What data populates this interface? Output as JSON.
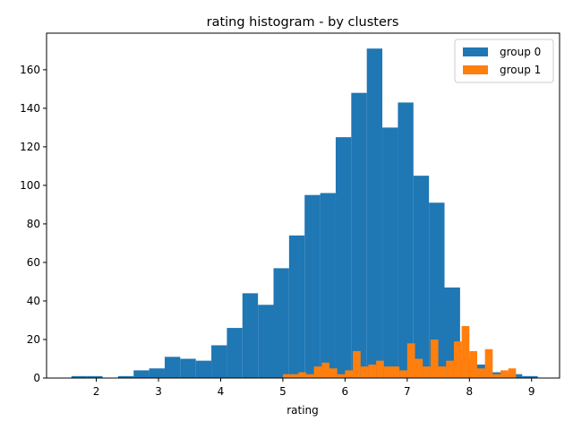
{
  "chart_data": {
    "type": "bar",
    "title": "rating histogram - by clusters",
    "xlabel": "rating",
    "ylabel": "",
    "xlim": [
      1.2,
      9.45
    ],
    "ylim": [
      0,
      179
    ],
    "x_ticks": [
      2,
      3,
      4,
      5,
      6,
      7,
      8,
      9
    ],
    "y_ticks": [
      0,
      20,
      40,
      60,
      80,
      100,
      120,
      140,
      160
    ],
    "grid": false,
    "legend_position": "top-right",
    "series": [
      {
        "name": "group 0",
        "color": "#1f77b4",
        "bin_start": 1.6,
        "bin_width": 0.25,
        "counts": [
          1,
          1,
          0,
          1,
          4,
          5,
          11,
          10,
          9,
          17,
          26,
          44,
          38,
          57,
          74,
          95,
          96,
          125,
          148,
          171,
          130,
          143,
          105,
          91,
          47,
          10,
          7,
          3,
          2,
          1
        ]
      },
      {
        "name": "group 1",
        "color": "#ff7f0e",
        "bin_start": 5.0,
        "bin_width": 0.125,
        "counts": [
          2,
          2,
          3,
          2,
          6,
          8,
          5,
          2,
          4,
          14,
          6,
          7,
          9,
          6,
          6,
          4,
          18,
          10,
          6,
          20,
          6,
          9,
          19,
          27,
          14,
          5,
          15,
          2,
          4,
          5
        ]
      }
    ]
  }
}
